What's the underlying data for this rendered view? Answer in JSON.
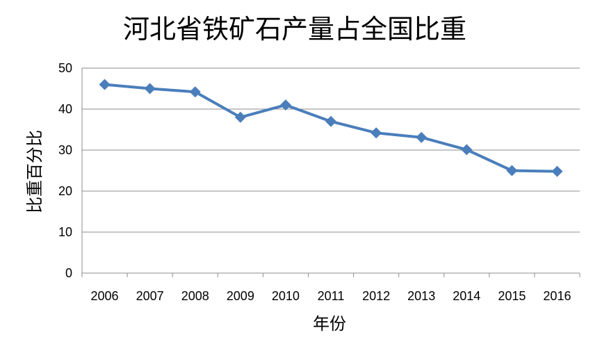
{
  "chart_data": {
    "type": "line",
    "title": "河北省铁矿石产量占全国比重",
    "xlabel": "年份",
    "ylabel": "比重百分比",
    "categories": [
      "2006",
      "2007",
      "2008",
      "2009",
      "2010",
      "2011",
      "2012",
      "2013",
      "2014",
      "2015",
      "2016"
    ],
    "series": [
      {
        "values": [
          46,
          45,
          44.2,
          38,
          41,
          37,
          34.2,
          33.1,
          30.1,
          25,
          24.8
        ]
      }
    ],
    "ylim": [
      0,
      50
    ],
    "yticks": [
      0,
      10,
      20,
      30,
      40,
      50
    ],
    "grid": true,
    "legend": "none",
    "marker": "diamond",
    "colors": {
      "series": "#4a7ebb"
    }
  }
}
